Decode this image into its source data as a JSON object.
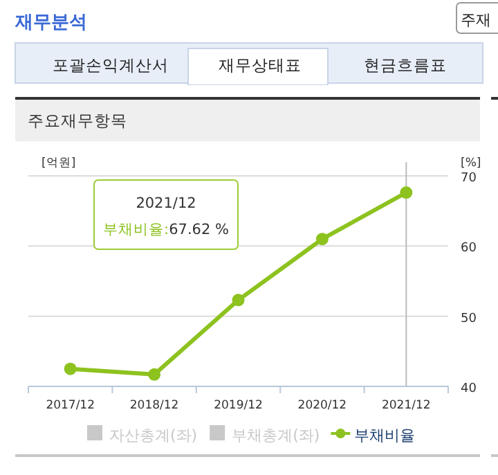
{
  "chart_data": {
    "type": "line",
    "title": "주요재무항목",
    "ylabel": "[억원]",
    "y2label": "[%]",
    "categories": [
      "2017/12",
      "2018/12",
      "2019/12",
      "2020/12",
      "2021/12"
    ],
    "series": [
      {
        "name": "자산총계(좌)",
        "color": "#c8c8c8",
        "type": "bar",
        "values": [
          null,
          null,
          null,
          null,
          null
        ]
      },
      {
        "name": "부채총계(좌)",
        "color": "#c8c8c8",
        "type": "bar",
        "values": [
          null,
          null,
          null,
          null,
          null
        ]
      },
      {
        "name": "부채비율",
        "color": "#8dc21f",
        "axis": "y2",
        "values": [
          42.5,
          41.7,
          52.3,
          61,
          67.62
        ]
      }
    ],
    "y2lim": [
      40,
      70
    ],
    "y2ticks": [
      40,
      50,
      60,
      70
    ],
    "grid": "y",
    "legend": "bottom",
    "marker": "circle",
    "line_style": "solid",
    "ref_lines": [
      {
        "axis": "x",
        "value": "2021/12",
        "color": "#bbbbbb"
      }
    ],
    "annotations": [
      "재무분석",
      "포괄손익계산서",
      "재무상태표",
      "현금흐름표",
      "주재",
      "2021/12\n부채비율:67.62 %"
    ]
  }
}
